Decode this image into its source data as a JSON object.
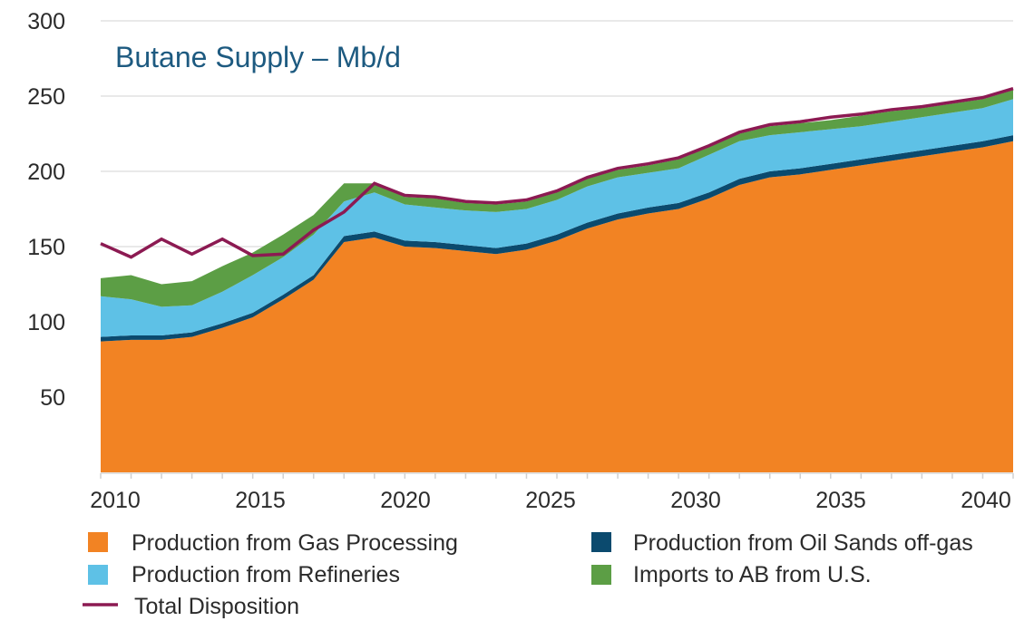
{
  "chart_data": {
    "type": "area",
    "stacked": true,
    "title": "Butane Supply – Mb/d",
    "xlabel": "",
    "ylabel": "",
    "xlim": [
      2010,
      2040
    ],
    "ylim": [
      0,
      300
    ],
    "grid": true,
    "legend_placement": "bottom",
    "x": [
      2010,
      2011,
      2012,
      2013,
      2014,
      2015,
      2016,
      2017,
      2018,
      2019,
      2020,
      2021,
      2022,
      2023,
      2024,
      2025,
      2026,
      2027,
      2028,
      2029,
      2030,
      2031,
      2032,
      2033,
      2034,
      2035,
      2036,
      2037,
      2038,
      2039,
      2040
    ],
    "x_tick_labels": [
      "2010",
      "2015",
      "2020",
      "2025",
      "2030",
      "2035",
      "2040"
    ],
    "y_tick_labels": [
      "50",
      "100",
      "150",
      "200",
      "250",
      "300"
    ],
    "series": [
      {
        "name": "Production from Gas Processing",
        "color": "#f28323",
        "values": [
          87,
          88,
          88,
          90,
          96,
          103,
          115,
          128,
          153,
          156,
          150,
          149,
          147,
          145,
          148,
          154,
          162,
          168,
          172,
          175,
          182,
          191,
          196,
          198,
          201,
          204,
          207,
          210,
          213,
          216,
          220
        ]
      },
      {
        "name": "Production from Oil Sands off-gas",
        "color": "#0b4a6e",
        "values": [
          3,
          3,
          3,
          3,
          3,
          3,
          3,
          3,
          4,
          4,
          4,
          4,
          4,
          4,
          4,
          4,
          4,
          4,
          4,
          4,
          4,
          4,
          4,
          4,
          4,
          4,
          4,
          4,
          4,
          4,
          4
        ]
      },
      {
        "name": "Production from Refineries",
        "color": "#5ec1e6",
        "values": [
          27,
          24,
          19,
          18,
          21,
          25,
          25,
          27,
          23,
          26,
          24,
          23,
          23,
          24,
          23,
          23,
          24,
          24,
          23,
          23,
          25,
          25,
          24,
          24,
          23,
          22,
          22,
          22,
          22,
          22,
          24
        ]
      },
      {
        "name": "Imports to AB from U.S.",
        "color": "#5c9e45",
        "values": [
          12,
          16,
          15,
          16,
          17,
          15,
          15,
          13,
          12,
          6,
          5,
          6,
          5,
          5,
          5,
          5,
          5,
          5,
          5,
          6,
          5,
          5,
          6,
          6,
          6,
          7,
          7,
          6,
          6,
          6,
          6
        ]
      }
    ],
    "line_series": {
      "name": "Total Disposition",
      "color": "#8c1a52",
      "values": [
        152,
        143,
        155,
        145,
        155,
        144,
        145,
        161,
        173,
        192,
        184,
        183,
        180,
        179,
        181,
        187,
        196,
        202,
        205,
        209,
        217,
        226,
        231,
        233,
        236,
        238,
        241,
        243,
        246,
        249,
        255
      ]
    }
  }
}
